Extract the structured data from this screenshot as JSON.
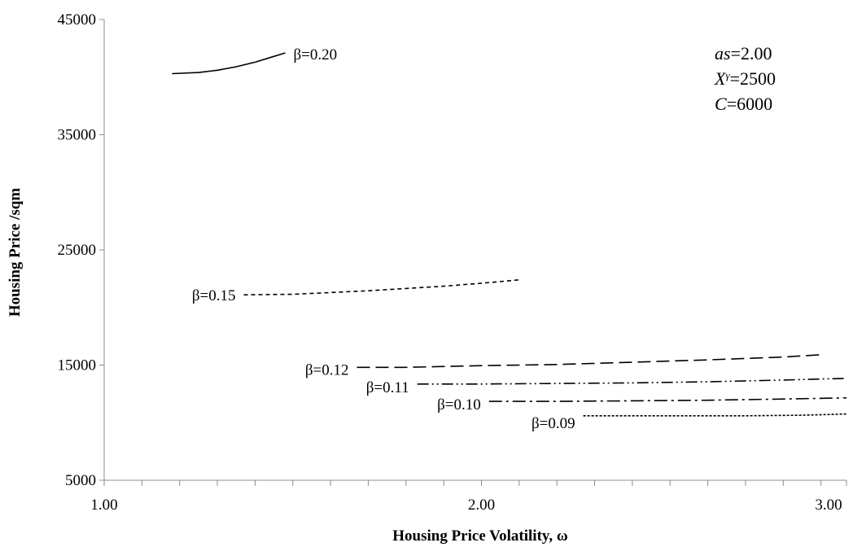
{
  "chart_data": {
    "type": "line",
    "title": "",
    "xlabel": "Housing Price Volatility, ω",
    "ylabel": "Housing Price /sqm",
    "xlim": [
      1.0,
      3.0
    ],
    "ylim": [
      5000,
      45000
    ],
    "x_ticks": [
      {
        "value": 1.0,
        "label": "1.00"
      },
      {
        "value": 2.0,
        "label": "2.00"
      },
      {
        "value": 3.0,
        "label": "3.00"
      }
    ],
    "x_minor_step": 0.1,
    "y_ticks": [
      {
        "value": 5000,
        "label": "5000"
      },
      {
        "value": 15000,
        "label": "15000"
      },
      {
        "value": 25000,
        "label": "25000"
      },
      {
        "value": 35000,
        "label": "35000"
      },
      {
        "value": 45000,
        "label": "45000"
      }
    ],
    "grid": false,
    "legend": "none",
    "parameters": {
      "as": {
        "name": "as",
        "eq": "=2.00"
      },
      "xg": {
        "name": "X",
        "sup": "γ",
        "eq": "=2500"
      },
      "c": {
        "name": "C",
        "eq": "=6000"
      }
    },
    "series": [
      {
        "label": "β=0.20",
        "style": "solid",
        "x": [
          1.18,
          1.25,
          1.3,
          1.35,
          1.4,
          1.44,
          1.48
        ],
        "y": [
          40300,
          40400,
          40600,
          40900,
          41300,
          41700,
          42100
        ]
      },
      {
        "label": "β=0.15",
        "style": "dotted-dash",
        "x": [
          1.37,
          1.5,
          1.6,
          1.7,
          1.8,
          1.9,
          2.0,
          2.1
        ],
        "y": [
          21100,
          21150,
          21300,
          21450,
          21650,
          21850,
          22100,
          22400
        ]
      },
      {
        "label": "β=0.12",
        "style": "long-dash",
        "x": [
          1.67,
          1.8,
          2.0,
          2.2,
          2.4,
          2.6,
          2.8,
          2.9
        ],
        "y": [
          14800,
          14800,
          14950,
          15050,
          15250,
          15450,
          15700,
          15900
        ]
      },
      {
        "label": "β=0.11",
        "style": "dash-dot-dot",
        "x": [
          1.83,
          2.0,
          2.2,
          2.4,
          2.6,
          2.8,
          3.0
        ],
        "y": [
          13350,
          13350,
          13400,
          13450,
          13550,
          13700,
          13850
        ]
      },
      {
        "label": "β=0.10",
        "style": "dash-dot",
        "x": [
          2.02,
          2.2,
          2.4,
          2.6,
          2.8,
          3.0
        ],
        "y": [
          11850,
          11850,
          11900,
          11950,
          12050,
          12150
        ]
      },
      {
        "label": "β=0.09",
        "style": "fine-dash",
        "x": [
          2.27,
          2.5,
          2.7,
          2.85,
          3.0
        ],
        "y": [
          10600,
          10600,
          10600,
          10650,
          10750
        ]
      }
    ]
  }
}
